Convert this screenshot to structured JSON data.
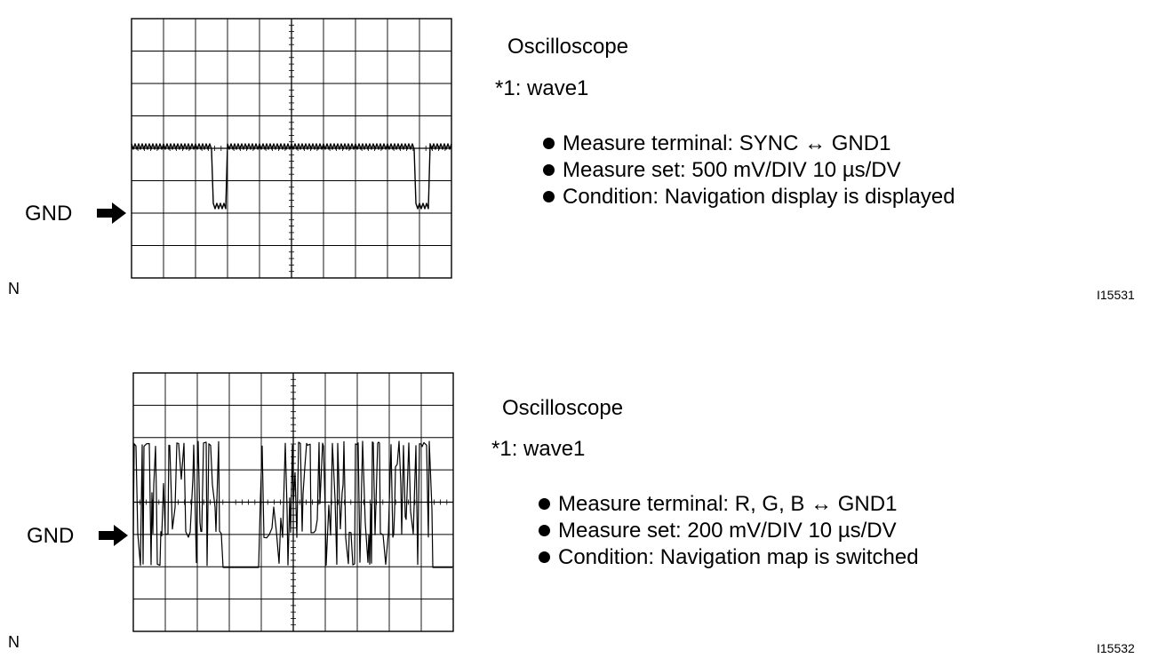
{
  "panels": [
    {
      "title": "Oscilloscope",
      "subtitle": "*1: wave1",
      "gnd_label": "GND",
      "specs": [
        "Measure terminal: SYNC ↔ GND1",
        "Measure set: 500 mV/DIV 10 µs/DV",
        "Condition: Navigation display is displayed"
      ],
      "corner_mark": "N",
      "figure_id": "I15531"
    },
    {
      "title": "Oscilloscope",
      "subtitle": "*1: wave1",
      "gnd_label": "GND",
      "specs": [
        "Measure terminal: R, G, B ↔ GND1",
        "Measure set: 200 mV/DIV 10 µs/DV",
        "Condition: Navigation map is switched"
      ],
      "corner_mark": "N",
      "figure_id": "I15532"
    }
  ],
  "icons": {
    "gnd_arrow": "right-arrow-icon",
    "bullet": "bullet-icon"
  },
  "colors": {
    "ink": "#000000",
    "background": "#ffffff"
  }
}
